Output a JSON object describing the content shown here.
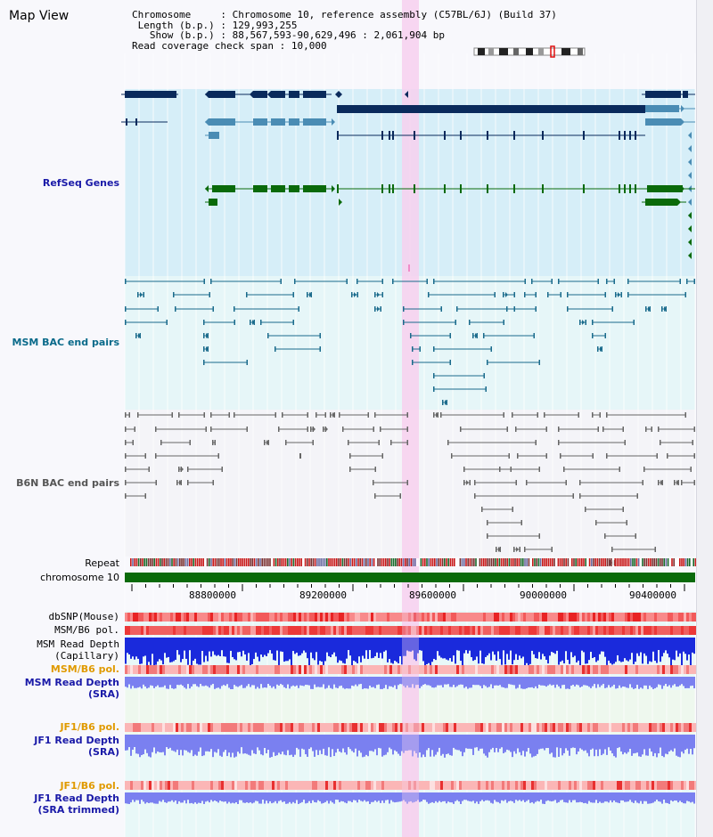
{
  "title": "Map View",
  "info": {
    "chromosome_label": "Chromosome",
    "chromosome_value": "Chromosome 10, reference assembly (C57BL/6J) (Build 37)",
    "length_label": "Length (b.p.)",
    "length_value": "129,993,255",
    "show_label": "Show (b.p.)",
    "show_value": "88,567,593-90,629,496 : 2,061,904 bp",
    "span_label": "Read coverage check span",
    "span_value": "10,000"
  },
  "tracks": {
    "refseq": "RefSeq Genes",
    "msm_bac": "MSM BAC end pairs",
    "b6n_bac": "B6N BAC end pairs",
    "repeat": "Repeat",
    "chromosome": "chromosome 10",
    "dbsnp": "dbSNP(Mouse)",
    "msm_b6_pol_1": "MSM/B6 pol.",
    "msm_read_depth_cap_1": "MSM Read Depth",
    "msm_read_depth_cap_2": "(Capillary)",
    "msm_b6_pol_2": "MSM/B6 pol.",
    "msm_read_depth_sra_1": "MSM Read Depth",
    "msm_read_depth_sra_2": "(SRA)",
    "jf1_b6_pol_1": "JF1/B6 pol.",
    "jf1_read_depth_1": "JF1 Read Depth",
    "jf1_read_depth_2": "(SRA)",
    "jf1_b6_pol_2": "JF1/B6 pol.",
    "jf1_trim_1": "JF1 Read Depth",
    "jf1_trim_2": "(SRA trimmed)"
  },
  "axis": {
    "ticks": [
      "88800000",
      "89200000",
      "89600000",
      "90000000",
      "90400000"
    ]
  },
  "colors": {
    "refseq_bg": "#d6eef8",
    "msm_bg": "#e6f6f8",
    "b6n_bg": "#f4f4f8",
    "highlight": "#f7d0ee",
    "navy": "#0a2a5c",
    "teal": "#1a6b8c",
    "steel": "#4a8cb4",
    "green": "#0a6a0a",
    "label_blue": "#1a1aa8",
    "label_teal": "#0a6a8a",
    "label_orange": "#e09a00",
    "depth_blue": "#1a2adc",
    "depth_light": "#7a80f0"
  }
}
